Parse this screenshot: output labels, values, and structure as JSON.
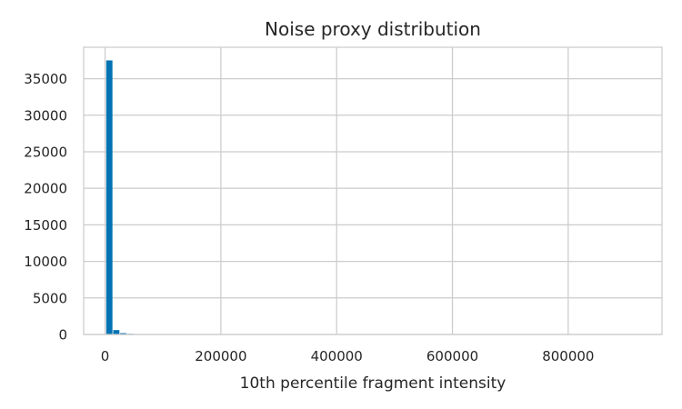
{
  "chart_data": {
    "type": "bar",
    "title": "Noise proxy distribution",
    "xlabel": "10th percentile fragment intensity",
    "ylabel": "",
    "xlim": [
      -37000,
      962000
    ],
    "ylim": [
      0,
      39300
    ],
    "x_ticks": [
      0,
      200000,
      400000,
      600000,
      800000
    ],
    "x_tick_labels": [
      "0",
      "200000",
      "400000",
      "600000",
      "800000"
    ],
    "y_ticks": [
      0,
      5000,
      10000,
      15000,
      20000,
      25000,
      30000,
      35000
    ],
    "y_tick_labels": [
      "0",
      "5000",
      "10000",
      "15000",
      "20000",
      "25000",
      "30000",
      "35000"
    ],
    "bin_width": 12000,
    "bin_starts": [
      2000,
      14000,
      26000,
      38000,
      50000,
      62000,
      74000,
      86000
    ],
    "values": [
      37500,
      600,
      180,
      90,
      60,
      30,
      15,
      10
    ],
    "bar_color": "#0173b2",
    "grid": true
  }
}
